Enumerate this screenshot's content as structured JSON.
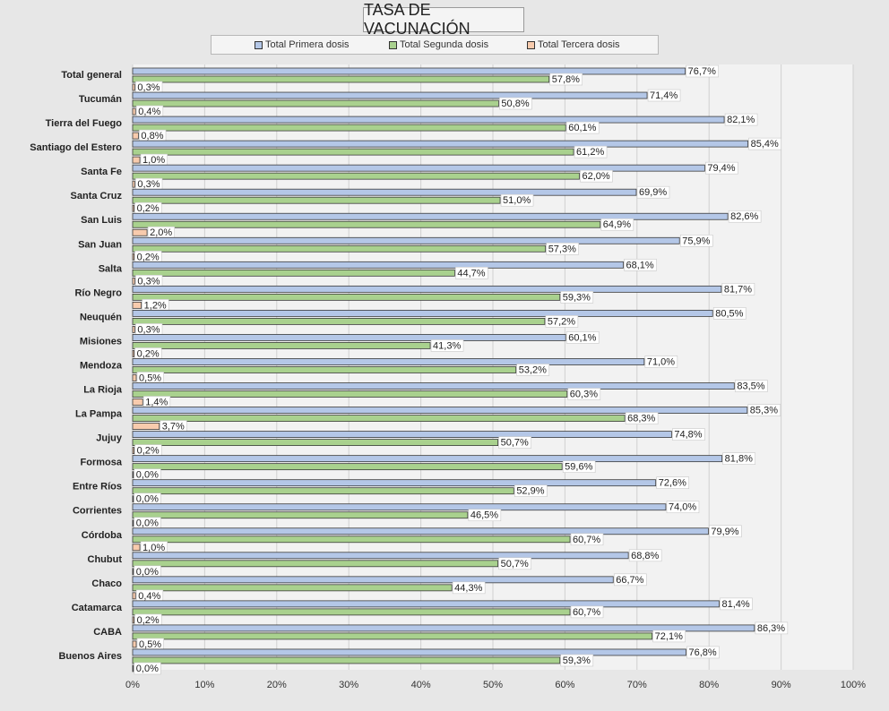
{
  "chart_data": {
    "type": "bar",
    "orientation": "horizontal",
    "title": "TASA DE VACUNACIÓN",
    "categories": [
      "Total general",
      "Tucumán",
      "Tierra del Fuego",
      "Santiago del Estero",
      "Santa Fe",
      "Santa Cruz",
      "San Luis",
      "San Juan",
      "Salta",
      "Río Negro",
      "Neuquén",
      "Misiones",
      "Mendoza",
      "La Rioja",
      "La Pampa",
      "Jujuy",
      "Formosa",
      "Entre Ríos",
      "Corrientes",
      "Córdoba",
      "Chubut",
      "Chaco",
      "Catamarca",
      "CABA",
      "Buenos Aires"
    ],
    "series": [
      {
        "name": "Total Primera dosis",
        "color": "#b4c7e7",
        "values": [
          76.7,
          71.4,
          82.1,
          85.4,
          79.4,
          69.9,
          82.6,
          75.9,
          68.1,
          81.7,
          80.5,
          60.1,
          71.0,
          83.5,
          85.3,
          74.8,
          81.8,
          72.6,
          74.0,
          79.9,
          68.8,
          66.7,
          81.4,
          86.3,
          76.8
        ],
        "labels": [
          "76,7%",
          "71,4%",
          "82,1%",
          "85,4%",
          "79,4%",
          "69,9%",
          "82,6%",
          "75,9%",
          "68,1%",
          "81,7%",
          "80,5%",
          "60,1%",
          "71,0%",
          "83,5%",
          "85,3%",
          "74,8%",
          "81,8%",
          "72,6%",
          "74,0%",
          "79,9%",
          "68,8%",
          "66,7%",
          "81,4%",
          "86,3%",
          "76,8%"
        ]
      },
      {
        "name": "Total Segunda dosis",
        "color": "#a9d18e",
        "values": [
          57.8,
          50.8,
          60.1,
          61.2,
          62.0,
          51.0,
          64.9,
          57.3,
          44.7,
          59.3,
          57.2,
          41.3,
          53.2,
          60.3,
          68.3,
          50.7,
          59.6,
          52.9,
          46.5,
          60.7,
          50.7,
          44.3,
          60.7,
          72.1,
          59.3
        ],
        "labels": [
          "57,8%",
          "50,8%",
          "60,1%",
          "61,2%",
          "62,0%",
          "51,0%",
          "64,9%",
          "57,3%",
          "44,7%",
          "59,3%",
          "57,2%",
          "41,3%",
          "53,2%",
          "60,3%",
          "68,3%",
          "50,7%",
          "59,6%",
          "52,9%",
          "46,5%",
          "60,7%",
          "50,7%",
          "44,3%",
          "60,7%",
          "72,1%",
          "59,3%"
        ]
      },
      {
        "name": "Total Tercera dosis",
        "color": "#f8cbad",
        "values": [
          0.3,
          0.4,
          0.8,
          1.0,
          0.3,
          0.2,
          2.0,
          0.2,
          0.3,
          1.2,
          0.3,
          0.2,
          0.5,
          1.4,
          3.7,
          0.2,
          0.0,
          0.0,
          0.0,
          1.0,
          0.0,
          0.4,
          0.2,
          0.5,
          0.0
        ],
        "labels": [
          "0,3%",
          "0,4%",
          "0,8%",
          "1,0%",
          "0,3%",
          "0,2%",
          "2,0%",
          "0,2%",
          "0,3%",
          "1,2%",
          "0,3%",
          "0,2%",
          "0,5%",
          "1,4%",
          "3,7%",
          "0,2%",
          "0,0%",
          "0,0%",
          "0,0%",
          "1,0%",
          "0,0%",
          "0,4%",
          "0,2%",
          "0,5%",
          "0,0%"
        ]
      }
    ],
    "xlim": [
      0,
      100
    ],
    "xticks": [
      "0%",
      "10%",
      "20%",
      "30%",
      "40%",
      "50%",
      "60%",
      "70%",
      "80%",
      "90%",
      "100%"
    ],
    "grid": true,
    "legend_position": "top"
  }
}
